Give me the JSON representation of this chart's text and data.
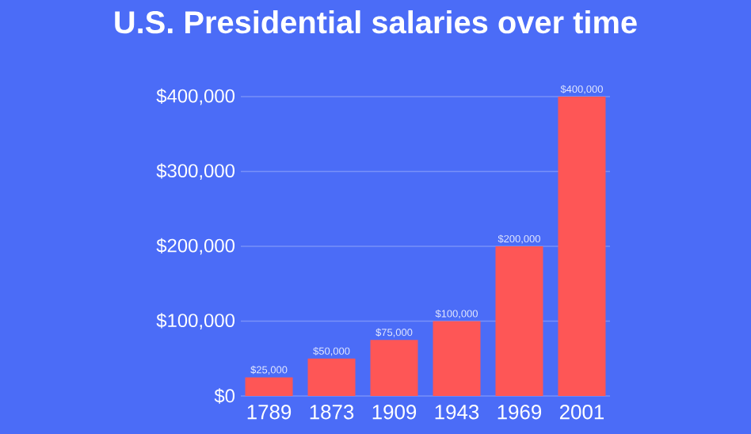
{
  "chart_data": {
    "type": "bar",
    "title": "U.S. Presidential salaries over time",
    "categories": [
      "1789",
      "1873",
      "1909",
      "1943",
      "1969",
      "2001"
    ],
    "values": [
      25000,
      50000,
      75000,
      100000,
      200000,
      400000
    ],
    "value_labels": [
      "$25,000",
      "$50,000",
      "$75,000",
      "$100,000",
      "$200,000",
      "$400,000"
    ],
    "color": "#fe5656",
    "ylim": [
      0,
      400000
    ],
    "yticks": [
      {
        "value": 0,
        "label": "$0"
      },
      {
        "value": 100000,
        "label": "$100,000"
      },
      {
        "value": 200000,
        "label": "$200,000"
      },
      {
        "value": 300000,
        "label": "$300,000"
      },
      {
        "value": 400000,
        "label": "$400,000"
      }
    ],
    "grid": "y"
  }
}
